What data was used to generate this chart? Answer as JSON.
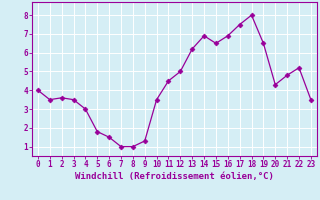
{
  "x": [
    0,
    1,
    2,
    3,
    4,
    5,
    6,
    7,
    8,
    9,
    10,
    11,
    12,
    13,
    14,
    15,
    16,
    17,
    18,
    19,
    20,
    21,
    22,
    23
  ],
  "y": [
    4.0,
    3.5,
    3.6,
    3.5,
    3.0,
    1.8,
    1.5,
    1.0,
    1.0,
    1.3,
    3.5,
    4.5,
    5.0,
    6.2,
    6.9,
    6.5,
    6.9,
    7.5,
    8.0,
    6.5,
    4.3,
    4.8,
    5.2,
    3.5
  ],
  "line_color": "#990099",
  "marker": "D",
  "marker_size": 2.5,
  "bg_color": "#d5eef5",
  "grid_color": "#ffffff",
  "xlabel": "Windchill (Refroidissement éolien,°C)",
  "xlim_min": -0.5,
  "xlim_max": 23.5,
  "ylim_min": 0.5,
  "ylim_max": 8.7,
  "yticks": [
    1,
    2,
    3,
    4,
    5,
    6,
    7,
    8
  ],
  "xticks": [
    0,
    1,
    2,
    3,
    4,
    5,
    6,
    7,
    8,
    9,
    10,
    11,
    12,
    13,
    14,
    15,
    16,
    17,
    18,
    19,
    20,
    21,
    22,
    23
  ],
  "tick_label_fontsize": 5.5,
  "xlabel_fontsize": 6.5
}
